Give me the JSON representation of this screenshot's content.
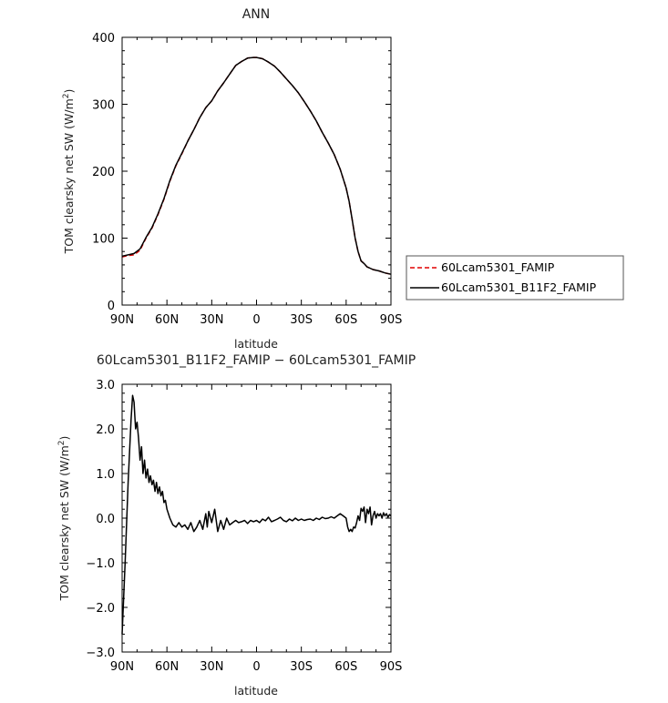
{
  "chart_data": [
    {
      "type": "line",
      "title": "ANN",
      "xlabel": "latitude",
      "ylabel": "TOM clearsky net SW (W/m",
      "ylabel_sup": "2",
      "ylabel_tail": ")",
      "xlim": [
        90,
        -90
      ],
      "ylim": [
        0,
        400
      ],
      "xticks": [
        90,
        60,
        30,
        0,
        -30,
        -60,
        -90
      ],
      "xtick_labels": [
        "90N",
        "60N",
        "30N",
        "0",
        "30S",
        "60S",
        "90S"
      ],
      "yticks": [
        0,
        100,
        200,
        300,
        400
      ],
      "ytick_labels": [
        "0",
        "100",
        "200",
        "300",
        "400"
      ],
      "grid": false,
      "legend_position": "right",
      "series": [
        {
          "name": "60Lcam5301_FAMIP",
          "color": "#e00000",
          "dash": "dashed",
          "x": [
            90,
            86,
            82,
            78,
            74,
            70,
            66,
            62,
            58,
            54,
            50,
            46,
            42,
            38,
            34,
            30,
            26,
            22,
            18,
            14,
            10,
            6,
            2,
            0,
            -4,
            -8,
            -12,
            -16,
            -20,
            -24,
            -28,
            -32,
            -36,
            -40,
            -44,
            -48,
            -52,
            -56,
            -60,
            -62,
            -64,
            -66,
            -68,
            -70,
            -72,
            -74,
            -78,
            -82,
            -86,
            -90
          ],
          "y": [
            72,
            74,
            75,
            82,
            100,
            115,
            135,
            158,
            185,
            208,
            226,
            245,
            262,
            280,
            295,
            305,
            320,
            332,
            345,
            358,
            364,
            369,
            370,
            370,
            368,
            363,
            357,
            348,
            338,
            328,
            317,
            304,
            290,
            275,
            258,
            242,
            225,
            203,
            175,
            155,
            128,
            100,
            80,
            66,
            62,
            57,
            53,
            51,
            48,
            46
          ]
        },
        {
          "name": "60Lcam5301_B11F2_FAMIP",
          "color": "#000000",
          "dash": "solid",
          "x": [
            90,
            86,
            82,
            78,
            74,
            70,
            66,
            62,
            58,
            54,
            50,
            46,
            42,
            38,
            34,
            30,
            26,
            22,
            18,
            14,
            10,
            6,
            2,
            0,
            -4,
            -8,
            -12,
            -16,
            -20,
            -24,
            -28,
            -32,
            -36,
            -40,
            -44,
            -48,
            -52,
            -56,
            -60,
            -62,
            -64,
            -66,
            -68,
            -70,
            -72,
            -74,
            -78,
            -82,
            -86,
            -90
          ],
          "y": [
            73,
            75,
            77,
            84,
            101,
            116,
            136,
            159,
            186,
            209,
            227,
            245,
            262,
            280,
            295,
            305,
            320,
            332,
            345,
            358,
            364,
            369,
            370,
            370,
            368,
            363,
            357,
            348,
            338,
            328,
            317,
            304,
            290,
            275,
            258,
            242,
            225,
            203,
            175,
            155,
            128,
            100,
            80,
            66,
            62,
            57,
            53,
            51,
            48,
            46
          ]
        }
      ]
    },
    {
      "type": "line",
      "title": "60Lcam5301_B11F2_FAMIP  −  60Lcam5301_FAMIP",
      "xlabel": "latitude",
      "ylabel": "TOM clearsky net SW (W/m",
      "ylabel_sup": "2",
      "ylabel_tail": ")",
      "xlim": [
        90,
        -90
      ],
      "ylim": [
        -3.0,
        3.0
      ],
      "xticks": [
        90,
        60,
        30,
        0,
        -30,
        -60,
        -90
      ],
      "xtick_labels": [
        "90N",
        "60N",
        "30N",
        "0",
        "30S",
        "60S",
        "90S"
      ],
      "yticks": [
        -3.0,
        -2.0,
        -1.0,
        0.0,
        1.0,
        2.0,
        3.0
      ],
      "ytick_labels": [
        "−3.0",
        "−2.0",
        "−1.0",
        "0.0",
        "1.0",
        "2.0",
        "3.0"
      ],
      "grid": false,
      "series": [
        {
          "color": "#000000",
          "x": [
            90,
            88,
            86,
            84,
            83,
            82,
            81.5,
            81,
            80,
            79,
            78,
            77,
            76,
            75,
            74,
            73,
            72,
            71,
            70,
            69,
            68,
            67,
            66,
            65,
            64,
            63,
            62,
            61,
            60,
            58,
            56,
            54,
            52,
            50,
            48,
            46,
            44,
            42,
            40,
            38,
            36,
            34,
            33,
            32,
            30,
            28,
            26,
            24,
            22,
            20,
            18,
            16,
            14,
            12,
            10,
            8,
            6,
            4,
            2,
            0,
            -2,
            -4,
            -6,
            -8,
            -10,
            -12,
            -14,
            -16,
            -18,
            -20,
            -22,
            -24,
            -26,
            -28,
            -30,
            -32,
            -34,
            -36,
            -38,
            -40,
            -42,
            -44,
            -46,
            -48,
            -50,
            -52,
            -54,
            -56,
            -58,
            -60,
            -61,
            -62,
            -63,
            -64,
            -65,
            -66,
            -67,
            -68,
            -69,
            -70,
            -71,
            -72,
            -73,
            -74,
            -75,
            -76,
            -77,
            -78,
            -79,
            -80,
            -81,
            -82,
            -83,
            -84,
            -85,
            -86,
            -87,
            -88,
            -89,
            -90
          ],
          "y": [
            -2.6,
            -1.0,
            0.8,
            2.2,
            2.75,
            2.6,
            2.3,
            2.0,
            2.15,
            1.8,
            1.3,
            1.6,
            1.0,
            1.3,
            0.9,
            1.1,
            0.8,
            0.95,
            0.75,
            0.85,
            0.6,
            0.8,
            0.55,
            0.7,
            0.5,
            0.6,
            0.35,
            0.4,
            0.2,
            0.0,
            -0.15,
            -0.2,
            -0.1,
            -0.2,
            -0.15,
            -0.25,
            -0.1,
            -0.3,
            -0.2,
            -0.05,
            -0.25,
            0.1,
            -0.2,
            0.15,
            -0.1,
            0.2,
            -0.3,
            -0.05,
            -0.25,
            0.0,
            -0.15,
            -0.1,
            -0.05,
            -0.1,
            -0.08,
            -0.05,
            -0.12,
            -0.05,
            -0.08,
            -0.05,
            -0.1,
            -0.02,
            -0.06,
            0.02,
            -0.08,
            -0.05,
            -0.02,
            0.02,
            -0.05,
            -0.08,
            -0.02,
            -0.06,
            0.0,
            -0.05,
            -0.02,
            -0.05,
            -0.03,
            -0.02,
            -0.05,
            0.0,
            -0.03,
            0.02,
            -0.01,
            0.0,
            0.03,
            0.0,
            0.05,
            0.1,
            0.05,
            0.0,
            -0.2,
            -0.3,
            -0.25,
            -0.3,
            -0.2,
            -0.22,
            -0.1,
            0.05,
            -0.05,
            0.22,
            0.15,
            0.25,
            -0.1,
            0.2,
            0.1,
            0.25,
            -0.15,
            0.05,
            0.15,
            0.0,
            0.1,
            0.05,
            0.1,
            0.0,
            0.12,
            0.05,
            0.1,
            0.02,
            0.08,
            0.05
          ]
        }
      ]
    }
  ]
}
